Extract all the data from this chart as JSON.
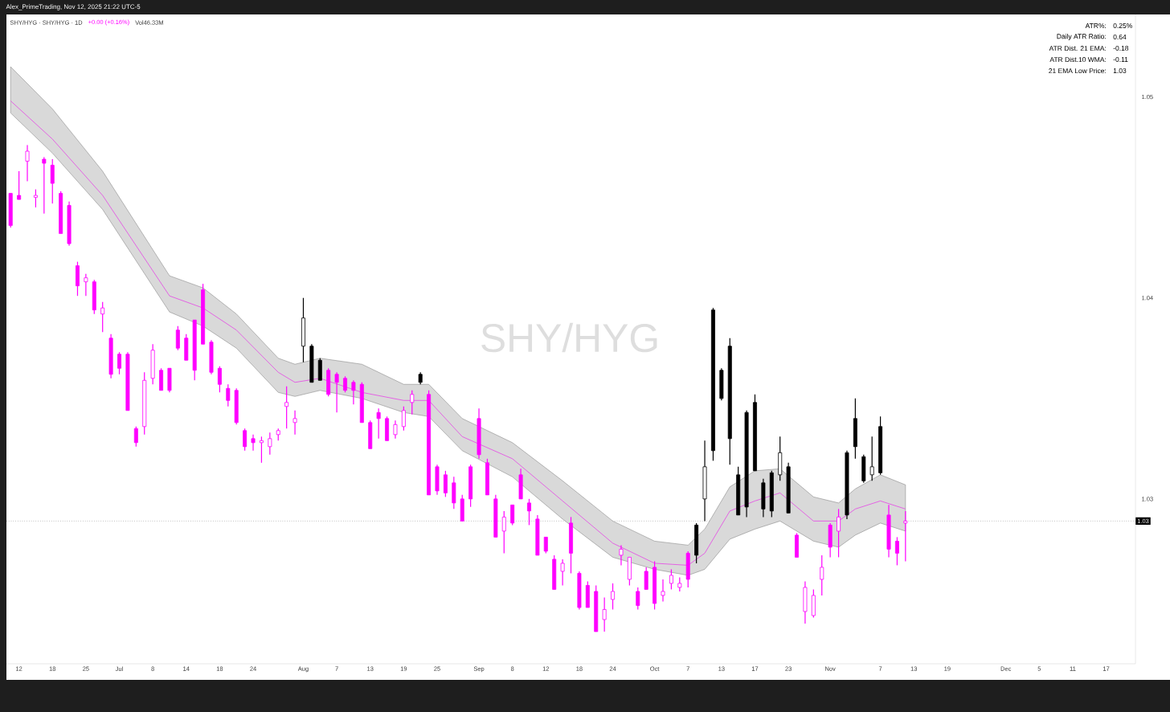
{
  "chart_data": {
    "type": "candlestick",
    "title": "SHY/HYG · SHY/HYG · 1D",
    "subtitle": "Alex_PrimeTrading, Nov 12, 2025 21:22 UTC-5",
    "annotations": [
      "SHY/HYG",
      "+0.00 (+0.16%)",
      "Vol46.33M",
      "ATR%:",
      "0.25%",
      "Daily ATR Ratio:",
      "0.64",
      "ATR Dist. 21 EMA:",
      "-0.18",
      "ATR Dist.10 WMA:",
      "-0.11",
      "21 EMA Low Price:",
      "1.03"
    ],
    "categories": [
      null,
      "12",
      null,
      null,
      null,
      "18",
      null,
      null,
      null,
      "25",
      null,
      null,
      null,
      "Jul",
      null,
      null,
      null,
      "8",
      null,
      null,
      null,
      "14",
      null,
      null,
      null,
      "18",
      null,
      null,
      null,
      "24",
      null,
      null,
      null,
      null,
      null,
      "Aug",
      null,
      null,
      null,
      "7",
      null,
      null,
      null,
      "13",
      null,
      null,
      null,
      "19",
      null,
      null,
      null,
      "25",
      null,
      null,
      null,
      null,
      "Sep",
      null,
      null,
      null,
      "8",
      null,
      null,
      null,
      "12",
      null,
      null,
      null,
      "18",
      null,
      null,
      null,
      "24",
      null,
      null,
      null,
      null,
      "Oct",
      null,
      null,
      null,
      "7",
      null,
      null,
      null,
      "13",
      null,
      null,
      null,
      "17",
      null,
      null,
      null,
      "23",
      null,
      null,
      null,
      null,
      "Nov",
      null,
      null,
      null,
      null,
      null,
      "7",
      null,
      null,
      null,
      "13",
      null,
      null,
      null,
      "19",
      null,
      null,
      null,
      null,
      null,
      null,
      "Dec",
      null,
      null,
      null,
      "5",
      null,
      null,
      null,
      "11",
      null,
      null,
      null,
      "17",
      null,
      null,
      null
    ],
    "ohlc": [
      [
        1.0452,
        1.0452,
        1.0435,
        1.0436
      ],
      [
        1.0451,
        1.0463,
        1.0449,
        1.0449
      ],
      [
        1.0468,
        1.0476,
        1.0458,
        1.0473
      ],
      [
        1.045,
        1.0454,
        1.0445,
        1.0451
      ],
      [
        1.0469,
        1.047,
        1.0442,
        1.0467
      ],
      [
        1.0466,
        1.0469,
        1.0447,
        1.0457
      ],
      [
        1.0452,
        1.0453,
        1.0432,
        1.0432
      ],
      [
        1.0446,
        1.0448,
        1.0426,
        1.0427
      ],
      [
        1.0416,
        1.0418,
        1.0401,
        1.0406
      ],
      [
        1.0408,
        1.0412,
        1.0401,
        1.041
      ],
      [
        1.0408,
        1.0409,
        1.0392,
        1.0394
      ],
      [
        1.0392,
        1.0398,
        1.0383,
        1.0395
      ],
      [
        1.038,
        1.0382,
        1.036,
        1.0362
      ],
      [
        1.0372,
        1.0373,
        1.0362,
        1.0365
      ],
      [
        1.0372,
        1.0373,
        1.0344,
        1.0344
      ],
      [
        1.0335,
        1.0336,
        1.0326,
        1.0328
      ],
      [
        1.0336,
        1.0363,
        1.0332,
        1.0359
      ],
      [
        1.036,
        1.0377,
        1.0357,
        1.0374
      ],
      [
        1.0364,
        1.0365,
        1.0354,
        1.0354
      ],
      [
        1.0365,
        1.0365,
        1.0353,
        1.0354
      ],
      [
        1.0384,
        1.0386,
        1.0374,
        1.0375
      ],
      [
        1.038,
        1.0382,
        1.0369,
        1.0369
      ],
      [
        1.0389,
        1.0389,
        1.0359,
        1.0364
      ],
      [
        1.0404,
        1.0407,
        1.0377,
        1.0377
      ],
      [
        1.0378,
        1.0379,
        1.0362,
        1.0363
      ],
      [
        1.0365,
        1.0366,
        1.0353,
        1.0357
      ],
      [
        1.0355,
        1.0357,
        1.0346,
        1.0349
      ],
      [
        1.0354,
        1.0355,
        1.0337,
        1.0338
      ],
      [
        1.0334,
        1.0335,
        1.0324,
        1.0326
      ],
      [
        1.033,
        1.0332,
        1.0324,
        1.0328
      ],
      [
        1.0328,
        1.0331,
        1.0318,
        1.0329
      ],
      [
        1.0326,
        1.0333,
        1.0322,
        1.033
      ],
      [
        1.0332,
        1.0335,
        1.0329,
        1.0334
      ],
      [
        1.0346,
        1.0356,
        1.0335,
        1.0348
      ],
      [
        1.0338,
        1.0344,
        1.0332,
        1.034
      ],
      [
        1.0376,
        1.04,
        1.0368,
        1.039
      ],
      [
        1.0376,
        1.0377,
        1.0358,
        1.0358
      ],
      [
        1.0369,
        1.037,
        1.0359,
        1.0359
      ],
      [
        1.0364,
        1.0365,
        1.0351,
        1.0352
      ],
      [
        1.0362,
        1.0363,
        1.0343,
        1.0358
      ],
      [
        1.036,
        1.0361,
        1.0353,
        1.0354
      ],
      [
        1.0358,
        1.0359,
        1.0347,
        1.0354
      ],
      [
        1.0357,
        1.0358,
        1.0338,
        1.0338
      ],
      [
        1.0338,
        1.0339,
        1.0325,
        1.0325
      ],
      [
        1.0343,
        1.0345,
        1.033,
        1.034
      ],
      [
        1.034,
        1.0341,
        1.0329,
        1.0329
      ],
      [
        1.0332,
        1.0339,
        1.033,
        1.0337
      ],
      [
        1.0336,
        1.0346,
        1.0334,
        1.0344
      ],
      [
        1.0348,
        1.0354,
        1.0342,
        1.0352
      ],
      [
        1.0362,
        1.0363,
        1.0357,
        1.0358
      ],
      [
        1.0352,
        1.0354,
        1.0302,
        1.0302
      ],
      [
        1.0316,
        1.0317,
        1.0302,
        1.0304
      ],
      [
        1.0312,
        1.0314,
        1.0301,
        1.0303
      ],
      [
        1.0308,
        1.0311,
        1.0295,
        1.0298
      ],
      [
        1.03,
        1.0302,
        1.0289,
        1.0289
      ],
      [
        1.0316,
        1.0317,
        1.0296,
        1.03
      ],
      [
        1.034,
        1.0345,
        1.032,
        1.0322
      ],
      [
        1.0318,
        1.032,
        1.0302,
        1.0302
      ],
      [
        1.03,
        1.0302,
        1.0281,
        1.0281
      ],
      [
        1.0284,
        1.0294,
        1.0273,
        1.0291
      ],
      [
        1.0297,
        1.0297,
        1.0287,
        1.0288
      ],
      [
        1.0312,
        1.0315,
        1.03,
        1.03
      ],
      [
        1.0298,
        1.03,
        1.0287,
        1.0294
      ],
      [
        1.029,
        1.0292,
        1.0272,
        1.0272
      ],
      [
        1.0281,
        1.0281,
        1.0273,
        1.0274
      ],
      [
        1.027,
        1.0272,
        1.0255,
        1.0255
      ],
      [
        1.0264,
        1.027,
        1.0257,
        1.0268
      ],
      [
        1.0288,
        1.0291,
        1.0263,
        1.0273
      ],
      [
        1.0263,
        1.0264,
        1.0245,
        1.0246
      ],
      [
        1.0257,
        1.0259,
        1.0246,
        1.0246
      ],
      [
        1.0254,
        1.0257,
        1.0234,
        1.0234
      ],
      [
        1.024,
        1.0251,
        1.0234,
        1.0245
      ],
      [
        1.025,
        1.0258,
        1.0245,
        1.0254
      ],
      [
        1.0272,
        1.0277,
        1.0267,
        1.0275
      ],
      [
        1.026,
        1.0271,
        1.0257,
        1.0271
      ],
      [
        1.0254,
        1.0256,
        1.0245,
        1.0247
      ],
      [
        1.0264,
        1.0266,
        1.0255,
        1.0255
      ],
      [
        1.0266,
        1.0269,
        1.0245,
        1.0248
      ],
      [
        1.0252,
        1.026,
        1.0249,
        1.0254
      ],
      [
        1.0258,
        1.0265,
        1.0255,
        1.0262
      ],
      [
        1.0256,
        1.0261,
        1.0254,
        1.0258
      ],
      [
        1.0273,
        1.0274,
        1.0256,
        1.026
      ],
      [
        1.0287,
        1.0288,
        1.0268,
        1.0272
      ],
      [
        1.03,
        1.0329,
        1.0289,
        1.0316
      ],
      [
        1.0394,
        1.0395,
        1.0319,
        1.0324
      ],
      [
        1.0364,
        1.0365,
        1.0349,
        1.035
      ],
      [
        1.0376,
        1.038,
        1.0317,
        1.033
      ],
      [
        1.0312,
        1.0316,
        1.0292,
        1.0292
      ],
      [
        1.0343,
        1.0344,
        1.0291,
        1.0296
      ],
      [
        1.0348,
        1.0352,
        1.0314,
        1.0314
      ],
      [
        1.0308,
        1.031,
        1.0291,
        1.0295
      ],
      [
        1.0313,
        1.0314,
        1.0291,
        1.0294
      ],
      [
        1.0312,
        1.0331,
        1.0309,
        1.0323
      ],
      [
        1.0316,
        1.0318,
        1.0293,
        1.0293
      ],
      [
        1.0282,
        1.0283,
        1.0271,
        1.0271
      ],
      [
        1.0244,
        1.0259,
        1.0238,
        1.0256
      ],
      [
        1.0242,
        1.0255,
        1.0241,
        1.0252
      ],
      [
        1.026,
        1.0272,
        1.0252,
        1.0266
      ],
      [
        1.0287,
        1.0288,
        1.0271,
        1.0276
      ],
      [
        1.0284,
        1.0295,
        1.0271,
        1.0291
      ],
      [
        1.0323,
        1.0324,
        1.029,
        1.0292
      ],
      [
        1.034,
        1.035,
        1.032,
        1.0326
      ],
      [
        1.0321,
        1.0322,
        1.0308,
        1.0309
      ],
      [
        1.0312,
        1.0331,
        1.0309,
        1.0316
      ],
      [
        1.0336,
        1.0341,
        1.0312,
        1.0313
      ],
      [
        1.0292,
        1.0297,
        1.0271,
        1.0275
      ],
      [
        1.0279,
        1.0281,
        1.0267,
        1.0273
      ],
      [
        1.0288,
        1.0294,
        1.0269,
        1.0289
      ],
      null,
      null,
      null,
      null,
      null,
      null,
      null,
      null,
      null,
      null,
      null,
      null,
      null,
      null,
      null,
      null,
      null,
      null,
      null,
      null,
      null,
      null,
      null,
      null,
      null,
      null,
      null
    ],
    "colors": [
      "#ff00ff",
      "#ff00ff",
      "#ff00ff",
      "#ff00ff",
      "#ff00ff",
      "#ff00ff",
      "#ff00ff",
      "#ff00ff",
      "#ff00ff",
      "#ff00ff",
      "#ff00ff",
      "#ff00ff",
      "#ff00ff",
      "#ff00ff",
      "#ff00ff",
      "#ff00ff",
      "#ff00ff",
      "#ff00ff",
      "#ff00ff",
      "#ff00ff",
      "#ff00ff",
      "#ff00ff",
      "#ff00ff",
      "#ff00ff",
      "#ff00ff",
      "#ff00ff",
      "#ff00ff",
      "#ff00ff",
      "#ff00ff",
      "#ff00ff",
      "#ff00ff",
      "#ff00ff",
      "#ff00ff",
      "#ff00ff",
      "#ff00ff",
      "#000000",
      "#000000",
      "#000000",
      "#ff00ff",
      "#ff00ff",
      "#ff00ff",
      "#ff00ff",
      "#ff00ff",
      "#ff00ff",
      "#ff00ff",
      "#ff00ff",
      "#ff00ff",
      "#ff00ff",
      "#ff00ff",
      "#000000",
      "#ff00ff",
      "#ff00ff",
      "#ff00ff",
      "#ff00ff",
      "#ff00ff",
      "#ff00ff",
      "#ff00ff",
      "#ff00ff",
      "#ff00ff",
      "#ff00ff",
      "#ff00ff",
      "#ff00ff",
      "#ff00ff",
      "#ff00ff",
      "#ff00ff",
      "#ff00ff",
      "#ff00ff",
      "#ff00ff",
      "#ff00ff",
      "#ff00ff",
      "#ff00ff",
      "#ff00ff",
      "#ff00ff",
      "#ff00ff",
      "#ff00ff",
      "#ff00ff",
      "#ff00ff",
      "#ff00ff",
      "#ff00ff",
      "#ff00ff",
      "#ff00ff",
      "#ff00ff",
      "#000000",
      "#000000",
      "#000000",
      "#000000",
      "#000000",
      "#000000",
      "#000000",
      "#000000",
      "#000000",
      "#000000",
      "#000000",
      "#000000",
      "#ff00ff",
      "#ff00ff",
      "#ff00ff",
      "#ff00ff",
      "#ff00ff",
      "#ff00ff",
      "#000000",
      "#000000",
      "#000000",
      "#000000",
      "#000000",
      "#ff00ff",
      "#ff00ff",
      "#ff00ff",
      null,
      null,
      null,
      null,
      null,
      null,
      null,
      null,
      null,
      null,
      null,
      null,
      null,
      null,
      null,
      null,
      null,
      null,
      null,
      null,
      null,
      null,
      null,
      null,
      null,
      null,
      null
    ],
    "series": [
      {
        "type": "line",
        "color": "#e645e6",
        "values": [
          1.0498,
          null,
          null,
          null,
          null,
          1.0479,
          null,
          null,
          null,
          null,
          null,
          1.0451,
          null,
          null,
          null,
          null,
          null,
          null,
          null,
          1.0401,
          null,
          null,
          null,
          1.0395,
          null,
          null,
          null,
          1.0384,
          null,
          null,
          null,
          null,
          1.0363,
          null,
          1.0358,
          null,
          null,
          1.036,
          null,
          null,
          null,
          null,
          1.0353,
          null,
          null,
          null,
          null,
          1.0349,
          null,
          null,
          1.0349,
          null,
          null,
          null,
          1.0331,
          null,
          null,
          null,
          null,
          null,
          1.032,
          null,
          null,
          null,
          null,
          null,
          1.0299,
          null,
          null,
          null,
          null,
          null,
          1.0278,
          null,
          null,
          null,
          null,
          1.0268,
          null,
          null,
          null,
          1.0267,
          null,
          1.0273,
          null,
          null,
          1.0294,
          null,
          null,
          1.0299,
          null,
          null,
          1.0303,
          null,
          null,
          null,
          1.0289,
          null,
          null,
          1.0289,
          null,
          1.0295,
          null,
          null,
          1.0299,
          null,
          null,
          1.0295,
          null,
          null,
          null,
          null,
          null,
          null,
          null,
          null,
          null,
          null,
          null,
          null,
          null,
          null,
          null,
          null,
          null,
          null,
          null,
          null,
          null,
          null,
          null,
          null,
          null,
          null,
          null
        ],
        "upper": [
          1.0515,
          null,
          null,
          null,
          null,
          1.0494,
          null,
          null,
          null,
          null,
          null,
          1.0463,
          null,
          null,
          null,
          null,
          null,
          null,
          null,
          1.0411,
          null,
          null,
          null,
          1.0405,
          null,
          null,
          null,
          1.0392,
          null,
          null,
          null,
          null,
          1.037,
          null,
          1.0367,
          null,
          null,
          1.037,
          null,
          null,
          null,
          null,
          1.0367,
          null,
          null,
          null,
          null,
          1.0357,
          null,
          null,
          1.0357,
          null,
          null,
          null,
          1.034,
          null,
          null,
          null,
          null,
          null,
          1.0328,
          null,
          null,
          null,
          null,
          null,
          1.0309,
          null,
          null,
          null,
          null,
          null,
          1.0289,
          null,
          null,
          null,
          null,
          1.0279,
          null,
          null,
          null,
          1.0277,
          null,
          1.0285,
          null,
          null,
          1.0306,
          null,
          null,
          1.0314,
          null,
          null,
          1.0315,
          null,
          null,
          null,
          1.0301,
          null,
          null,
          1.0298,
          null,
          1.0305,
          null,
          null,
          1.0312,
          null,
          null,
          1.0307,
          null,
          null,
          null,
          null,
          null,
          null,
          null,
          null,
          null,
          null,
          null,
          null,
          null,
          null,
          null,
          null,
          null,
          null,
          null,
          null,
          null,
          null,
          null,
          null,
          null,
          null,
          null
        ],
        "lower": [
          1.0492,
          null,
          null,
          null,
          null,
          1.0472,
          null,
          null,
          null,
          null,
          null,
          1.0444,
          null,
          null,
          null,
          null,
          null,
          null,
          null,
          1.0393,
          null,
          null,
          null,
          1.0386,
          null,
          null,
          null,
          1.0375,
          null,
          null,
          null,
          null,
          1.0353,
          null,
          1.0351,
          null,
          null,
          1.0354,
          null,
          null,
          null,
          null,
          1.035,
          null,
          null,
          null,
          null,
          1.0343,
          null,
          null,
          1.0341,
          null,
          null,
          null,
          1.0324,
          null,
          null,
          null,
          null,
          null,
          1.0311,
          null,
          null,
          null,
          null,
          null,
          1.029,
          null,
          null,
          null,
          null,
          null,
          1.0271,
          null,
          null,
          null,
          null,
          1.0265,
          null,
          null,
          null,
          1.0262,
          null,
          1.0265,
          null,
          null,
          1.028,
          null,
          null,
          1.0285,
          null,
          null,
          1.0289,
          null,
          null,
          null,
          1.0279,
          null,
          null,
          1.0276,
          null,
          1.0282,
          null,
          null,
          1.0288,
          null,
          null,
          1.0284,
          null,
          null,
          null,
          null,
          null,
          null,
          null,
          null,
          null,
          null,
          null,
          null,
          null,
          null,
          null,
          null,
          null,
          null,
          null,
          null,
          null,
          null,
          null,
          null,
          null,
          null,
          null
        ]
      }
    ],
    "ylim": [
      1.0218,
      1.0541
    ],
    "yticks": [
      1.03,
      1.04,
      1.05
    ],
    "ref_lines": [
      {
        "axis": "y",
        "value": 1.0289,
        "label": "1.03",
        "color": "#9e9e9e",
        "line_style": "dotted"
      }
    ]
  }
}
